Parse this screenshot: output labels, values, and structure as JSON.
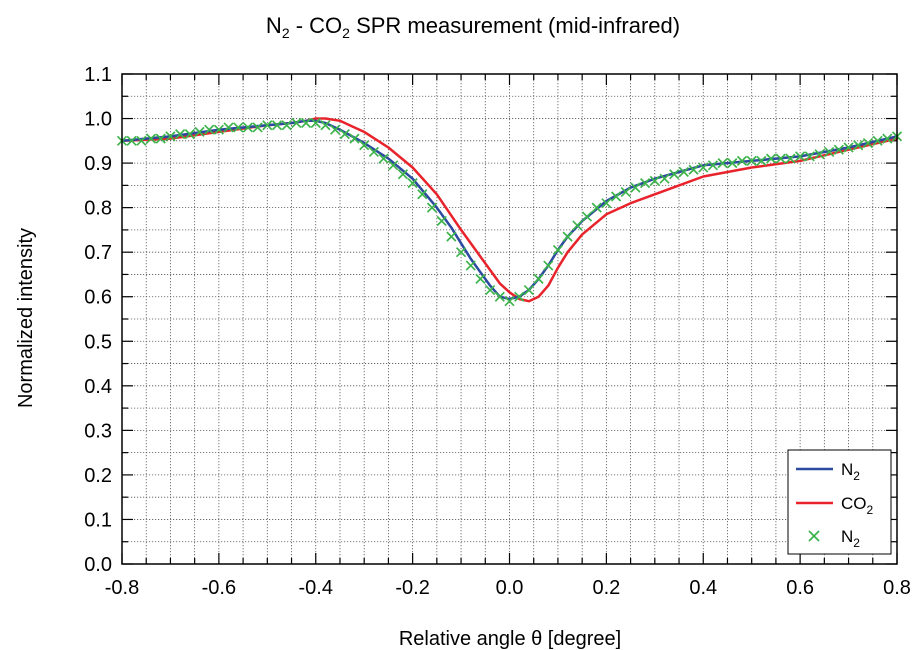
{
  "chart_data": {
    "type": "line",
    "title": {
      "a": "N",
      "a_sub": "2",
      "b": " - CO",
      "b_sub": "2",
      "c": " SPR measurement (mid-infrared)"
    },
    "xlabel": "Relative angle θ [degree]",
    "ylabel": "Normalized intensity",
    "xlim": [
      -0.8,
      0.8
    ],
    "ylim": [
      0.0,
      1.1
    ],
    "x_ticks": [
      -0.8,
      -0.6,
      -0.4,
      -0.2,
      0.0,
      0.2,
      0.4,
      0.6,
      0.8
    ],
    "x_tick_labels": [
      "-0.8",
      "-0.6",
      "-0.4",
      "-0.2",
      "0.0",
      "0.2",
      "0.4",
      "0.6",
      "0.8"
    ],
    "y_ticks": [
      0.0,
      0.1,
      0.2,
      0.3,
      0.4,
      0.5,
      0.6,
      0.7,
      0.8,
      0.9,
      1.0,
      1.1
    ],
    "y_tick_labels": [
      "0.0",
      "0.1",
      "0.2",
      "0.3",
      "0.4",
      "0.5",
      "0.6",
      "0.7",
      "0.8",
      "0.9",
      "1.0",
      "1.1"
    ],
    "grid": true,
    "grid_style": "dotted",
    "legend_position": "bottom-right",
    "series": [
      {
        "name": "N",
        "name_sub": "2",
        "style": "line",
        "color": "#2b4aa0",
        "x": [
          -0.8,
          -0.7,
          -0.6,
          -0.5,
          -0.45,
          -0.42,
          -0.4,
          -0.38,
          -0.35,
          -0.3,
          -0.25,
          -0.2,
          -0.15,
          -0.12,
          -0.1,
          -0.08,
          -0.06,
          -0.04,
          -0.02,
          0.0,
          0.02,
          0.04,
          0.06,
          0.08,
          0.1,
          0.12,
          0.15,
          0.2,
          0.25,
          0.3,
          0.35,
          0.4,
          0.5,
          0.6,
          0.7,
          0.8
        ],
        "y": [
          0.95,
          0.96,
          0.975,
          0.985,
          0.99,
          0.995,
          0.995,
          0.99,
          0.975,
          0.945,
          0.91,
          0.865,
          0.8,
          0.755,
          0.72,
          0.685,
          0.655,
          0.625,
          0.6,
          0.595,
          0.6,
          0.615,
          0.64,
          0.67,
          0.705,
          0.735,
          0.77,
          0.815,
          0.845,
          0.865,
          0.88,
          0.895,
          0.905,
          0.915,
          0.935,
          0.96
        ]
      },
      {
        "name": "CO",
        "name_sub": "2",
        "style": "line",
        "color": "#e8232b",
        "x": [
          -0.8,
          -0.7,
          -0.6,
          -0.5,
          -0.45,
          -0.42,
          -0.4,
          -0.38,
          -0.35,
          -0.32,
          -0.3,
          -0.25,
          -0.2,
          -0.15,
          -0.1,
          -0.06,
          -0.02,
          0.0,
          0.02,
          0.04,
          0.06,
          0.08,
          0.1,
          0.12,
          0.15,
          0.2,
          0.25,
          0.3,
          0.35,
          0.4,
          0.5,
          0.6,
          0.7,
          0.8
        ],
        "y": [
          0.95,
          0.955,
          0.97,
          0.985,
          0.99,
          0.995,
          1.0,
          1.0,
          0.995,
          0.98,
          0.97,
          0.935,
          0.89,
          0.83,
          0.75,
          0.69,
          0.63,
          0.61,
          0.595,
          0.59,
          0.6,
          0.625,
          0.665,
          0.7,
          0.74,
          0.785,
          0.81,
          0.83,
          0.85,
          0.87,
          0.89,
          0.905,
          0.93,
          0.955
        ]
      },
      {
        "name": "N",
        "name_sub": "2",
        "style": "markers",
        "color": "#3cb44b",
        "x": [
          -0.8,
          -0.78,
          -0.76,
          -0.74,
          -0.72,
          -0.7,
          -0.68,
          -0.66,
          -0.64,
          -0.62,
          -0.6,
          -0.58,
          -0.56,
          -0.54,
          -0.52,
          -0.5,
          -0.48,
          -0.46,
          -0.44,
          -0.42,
          -0.4,
          -0.38,
          -0.36,
          -0.34,
          -0.32,
          -0.3,
          -0.28,
          -0.26,
          -0.24,
          -0.22,
          -0.2,
          -0.18,
          -0.16,
          -0.14,
          -0.12,
          -0.1,
          -0.08,
          -0.06,
          -0.04,
          -0.02,
          0.0,
          0.02,
          0.04,
          0.06,
          0.08,
          0.1,
          0.12,
          0.14,
          0.16,
          0.18,
          0.2,
          0.22,
          0.24,
          0.26,
          0.28,
          0.3,
          0.32,
          0.34,
          0.36,
          0.38,
          0.4,
          0.42,
          0.44,
          0.46,
          0.48,
          0.5,
          0.52,
          0.54,
          0.56,
          0.58,
          0.6,
          0.62,
          0.64,
          0.66,
          0.68,
          0.7,
          0.72,
          0.74,
          0.76,
          0.78,
          0.8
        ],
        "y": [
          0.95,
          0.95,
          0.95,
          0.955,
          0.955,
          0.96,
          0.965,
          0.965,
          0.97,
          0.975,
          0.975,
          0.98,
          0.98,
          0.98,
          0.98,
          0.985,
          0.985,
          0.985,
          0.99,
          0.99,
          0.99,
          0.985,
          0.975,
          0.965,
          0.955,
          0.94,
          0.925,
          0.91,
          0.895,
          0.875,
          0.855,
          0.83,
          0.8,
          0.77,
          0.735,
          0.7,
          0.67,
          0.64,
          0.615,
          0.6,
          0.59,
          0.6,
          0.615,
          0.64,
          0.67,
          0.705,
          0.735,
          0.76,
          0.78,
          0.8,
          0.81,
          0.825,
          0.835,
          0.845,
          0.855,
          0.86,
          0.865,
          0.875,
          0.88,
          0.885,
          0.89,
          0.895,
          0.9,
          0.9,
          0.905,
          0.905,
          0.905,
          0.91,
          0.91,
          0.91,
          0.915,
          0.915,
          0.92,
          0.925,
          0.93,
          0.935,
          0.94,
          0.945,
          0.95,
          0.955,
          0.96
        ]
      }
    ]
  }
}
